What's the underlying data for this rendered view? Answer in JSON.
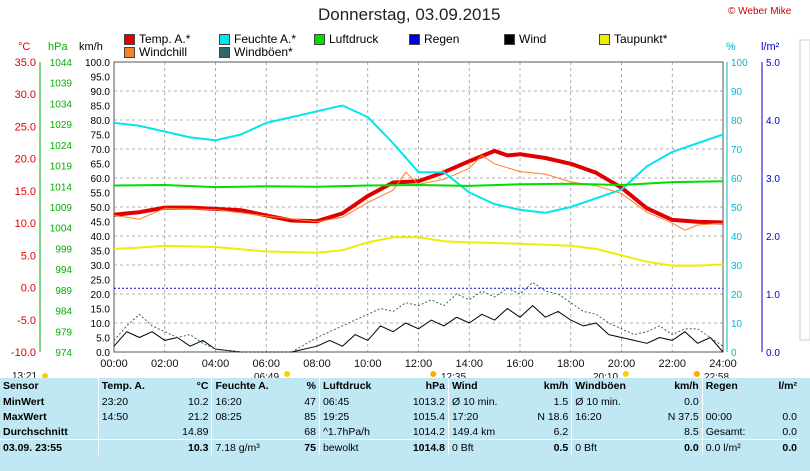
{
  "title": "Donnerstag, 03.09.2015",
  "copyright": "© Weber Mike",
  "legend": [
    {
      "label": "Temp. A.*",
      "color": "#e00000"
    },
    {
      "label": "Feuchte A.*",
      "color": "#00e5ee"
    },
    {
      "label": "Luftdruck",
      "color": "#00dd00"
    },
    {
      "label": "Regen",
      "color": "#0000dd"
    },
    {
      "label": "Wind",
      "color": "#000000"
    },
    {
      "label": "Taupunkt*",
      "color": "#eeee00"
    },
    {
      "label": "Windchill",
      "color": "#ff7f27"
    },
    {
      "label": "Windböen*",
      "color": "#336666"
    }
  ],
  "units": {
    "temp": "°C",
    "pressure": "hPa",
    "wind": "km/h",
    "humidity": "%",
    "rain": "l/m²"
  },
  "bottom_times": {
    "sunrise": "06:49",
    "sunset": "20:10",
    "moonset": "13:21",
    "t1": "12:35",
    "t2": "22:58"
  },
  "chart_data": {
    "type": "line",
    "x_ticks": [
      "00:00",
      "02:00",
      "04:00",
      "06:00",
      "08:00",
      "10:00",
      "12:00",
      "14:00",
      "16:00",
      "18:00",
      "20:00",
      "22:00",
      "24:00"
    ],
    "axes": {
      "temp_c": {
        "range": [
          -10,
          35
        ],
        "ticks": [
          "-10.0",
          "-5.0",
          "0.0",
          "5.0",
          "10.0",
          "15.0",
          "20.0",
          "25.0",
          "30.0",
          "35.0"
        ],
        "color": "#e00000"
      },
      "pressure_hpa": {
        "range": [
          974,
          1044
        ],
        "ticks": [
          "974",
          "979",
          "984",
          "989",
          "994",
          "999",
          "1004",
          "1009",
          "1014",
          "1019",
          "1024",
          "1029",
          "1034",
          "1039",
          "1044"
        ],
        "color": "#00b000"
      },
      "wind_kmh": {
        "range": [
          0,
          100
        ],
        "ticks": [
          "0.0",
          "5.0",
          "10.0",
          "15.0",
          "20.0",
          "25.0",
          "30.0",
          "35.0",
          "40.0",
          "45.0",
          "50.0",
          "55.0",
          "60.0",
          "65.0",
          "70.0",
          "75.0",
          "80.0",
          "85.0",
          "90.0",
          "95.0",
          "100.0"
        ],
        "color": "#000000"
      },
      "humidity_pct": {
        "range": [
          0,
          100
        ],
        "ticks": [
          "0",
          "10",
          "20",
          "30",
          "40",
          "50",
          "60",
          "70",
          "80",
          "90",
          "100"
        ],
        "color": "#00c8d8"
      },
      "rain_lm2": {
        "range": [
          0,
          5
        ],
        "ticks": [
          "0.0",
          "1.0",
          "2.0",
          "3.0",
          "4.0",
          "5.0"
        ],
        "color": "#0000cc"
      }
    },
    "series": [
      {
        "name": "Temp. A.*",
        "axis": "temp_c",
        "color": "#e00000",
        "width": 4,
        "points": [
          [
            0,
            11.3
          ],
          [
            1,
            11.7
          ],
          [
            2,
            12.4
          ],
          [
            3,
            12.4
          ],
          [
            4,
            12.2
          ],
          [
            5,
            12.0
          ],
          [
            6,
            11.2
          ],
          [
            7,
            10.4
          ],
          [
            8,
            10.3
          ],
          [
            9,
            11.5
          ],
          [
            10,
            14.2
          ],
          [
            11,
            16.3
          ],
          [
            12,
            16.5
          ],
          [
            13,
            17.9
          ],
          [
            14,
            19.6
          ],
          [
            15,
            21.2
          ],
          [
            15.5,
            20.5
          ],
          [
            16,
            20.7
          ],
          [
            17,
            20.1
          ],
          [
            18,
            19.2
          ],
          [
            19,
            17.8
          ],
          [
            20,
            15.5
          ],
          [
            21,
            12.3
          ],
          [
            22,
            10.5
          ],
          [
            23,
            10.2
          ],
          [
            24,
            10.1
          ]
        ]
      },
      {
        "name": "Windchill",
        "axis": "temp_c",
        "color": "#ff7f27",
        "width": 1,
        "points": [
          [
            0,
            11.2
          ],
          [
            1,
            10.6
          ],
          [
            2,
            12.3
          ],
          [
            4,
            12.1
          ],
          [
            6,
            11.1
          ],
          [
            8,
            10.2
          ],
          [
            9,
            10.9
          ],
          [
            10,
            13.2
          ],
          [
            11,
            15.1
          ],
          [
            11.5,
            17.9
          ],
          [
            12,
            16.0
          ],
          [
            13,
            16.8
          ],
          [
            14,
            18.5
          ],
          [
            14.5,
            20.5
          ],
          [
            15,
            19.2
          ],
          [
            16,
            18.0
          ],
          [
            17,
            17.6
          ],
          [
            18,
            16.4
          ],
          [
            19,
            15.8
          ],
          [
            20,
            14.6
          ],
          [
            21,
            11.7
          ],
          [
            22,
            10.0
          ],
          [
            22.5,
            8.9
          ],
          [
            23,
            9.7
          ],
          [
            24,
            10.0
          ]
        ]
      },
      {
        "name": "Feuchte A.*",
        "axis": "humidity_pct",
        "color": "#00e5ee",
        "width": 2,
        "points": [
          [
            0,
            79
          ],
          [
            1,
            78
          ],
          [
            2,
            76
          ],
          [
            3,
            74
          ],
          [
            4,
            73
          ],
          [
            5,
            75
          ],
          [
            6,
            79
          ],
          [
            7,
            81
          ],
          [
            8,
            83
          ],
          [
            9,
            85
          ],
          [
            10,
            81
          ],
          [
            11,
            72
          ],
          [
            12,
            62
          ],
          [
            13,
            62
          ],
          [
            14,
            55
          ],
          [
            15,
            51
          ],
          [
            16,
            49
          ],
          [
            17,
            48
          ],
          [
            18,
            50
          ],
          [
            19,
            53
          ],
          [
            20,
            56
          ],
          [
            21,
            64
          ],
          [
            22,
            69
          ],
          [
            23,
            72
          ],
          [
            24,
            75
          ]
        ]
      },
      {
        "name": "Luftdruck",
        "axis": "pressure_hpa",
        "color": "#00dd00",
        "width": 2,
        "points": [
          [
            0,
            1014.2
          ],
          [
            2,
            1014.3
          ],
          [
            4,
            1013.8
          ],
          [
            6,
            1014.0
          ],
          [
            8,
            1013.9
          ],
          [
            10,
            1014.2
          ],
          [
            12,
            1014.3
          ],
          [
            14,
            1014.1
          ],
          [
            16,
            1014.5
          ],
          [
            18,
            1014.6
          ],
          [
            20,
            1014.3
          ],
          [
            22,
            1015.0
          ],
          [
            24,
            1015.2
          ]
        ]
      },
      {
        "name": "Taupunkt*",
        "axis": "temp_c",
        "color": "#eeee00",
        "width": 2,
        "points": [
          [
            0,
            6.0
          ],
          [
            1,
            6.2
          ],
          [
            2,
            6.5
          ],
          [
            4,
            6.3
          ],
          [
            6,
            5.6
          ],
          [
            8,
            5.4
          ],
          [
            9,
            5.8
          ],
          [
            10,
            7.0
          ],
          [
            11,
            7.8
          ],
          [
            12,
            7.8
          ],
          [
            13,
            7.2
          ],
          [
            14,
            7.0
          ],
          [
            16,
            6.8
          ],
          [
            18,
            6.5
          ],
          [
            19,
            6.0
          ],
          [
            20,
            5.0
          ],
          [
            21,
            4.0
          ],
          [
            22,
            3.4
          ],
          [
            23,
            3.4
          ],
          [
            24,
            3.6
          ]
        ]
      },
      {
        "name": "Wind",
        "axis": "wind_kmh",
        "color": "#000000",
        "width": 1,
        "points": [
          [
            0,
            2
          ],
          [
            0.5,
            7
          ],
          [
            1,
            5
          ],
          [
            1.5,
            7
          ],
          [
            2,
            4
          ],
          [
            2.5,
            5
          ],
          [
            3,
            2
          ],
          [
            3.5,
            4
          ],
          [
            4,
            1
          ],
          [
            5,
            0
          ],
          [
            7,
            0
          ],
          [
            8,
            2
          ],
          [
            8.5,
            4
          ],
          [
            9,
            2
          ],
          [
            9.5,
            6
          ],
          [
            10,
            4
          ],
          [
            10.5,
            9
          ],
          [
            11,
            7
          ],
          [
            11.5,
            10
          ],
          [
            12,
            8
          ],
          [
            12.5,
            11
          ],
          [
            13,
            9
          ],
          [
            13.5,
            12
          ],
          [
            14,
            10
          ],
          [
            14.5,
            13
          ],
          [
            15,
            11
          ],
          [
            15.5,
            15
          ],
          [
            16,
            12
          ],
          [
            16.5,
            16
          ],
          [
            17,
            12
          ],
          [
            17.5,
            14
          ],
          [
            18,
            11
          ],
          [
            18.5,
            9
          ],
          [
            19,
            10
          ],
          [
            19.5,
            6
          ],
          [
            20,
            5
          ],
          [
            20.5,
            4
          ],
          [
            21,
            3
          ],
          [
            21.5,
            5
          ],
          [
            22,
            4
          ],
          [
            22.5,
            7
          ],
          [
            23,
            3
          ],
          [
            23.5,
            5
          ],
          [
            24,
            0
          ]
        ]
      },
      {
        "name": "Windböen*",
        "axis": "wind_kmh",
        "color": "#336666",
        "width": 1,
        "dashed": true,
        "points": [
          [
            0,
            4
          ],
          [
            0.5,
            9
          ],
          [
            1,
            13
          ],
          [
            1.5,
            9
          ],
          [
            2,
            7
          ],
          [
            2.5,
            5
          ],
          [
            3,
            6
          ],
          [
            3.5,
            3
          ],
          [
            4,
            1
          ],
          [
            5,
            0
          ],
          [
            7,
            0
          ],
          [
            8,
            5
          ],
          [
            8.5,
            7
          ],
          [
            9,
            9
          ],
          [
            9.5,
            11
          ],
          [
            10,
            13
          ],
          [
            10.5,
            15
          ],
          [
            11,
            14
          ],
          [
            11.5,
            17
          ],
          [
            12,
            16
          ],
          [
            12.5,
            18
          ],
          [
            13,
            16
          ],
          [
            13.5,
            20
          ],
          [
            14,
            18
          ],
          [
            14.5,
            21
          ],
          [
            15,
            19
          ],
          [
            15.5,
            22
          ],
          [
            16,
            20
          ],
          [
            16.5,
            24
          ],
          [
            17,
            21
          ],
          [
            17.5,
            20
          ],
          [
            18,
            17
          ],
          [
            18.5,
            14
          ],
          [
            19,
            13
          ],
          [
            19.5,
            10
          ],
          [
            20,
            8
          ],
          [
            20.5,
            6
          ],
          [
            21,
            7
          ],
          [
            21.5,
            9
          ],
          [
            22,
            6
          ],
          [
            22.5,
            8
          ],
          [
            23,
            8
          ],
          [
            23.5,
            5
          ],
          [
            24,
            2
          ]
        ]
      },
      {
        "name": "Regen",
        "axis": "wind_kmh",
        "color": "#0000dd",
        "width": 1,
        "dashed": true,
        "points": [
          [
            0,
            22
          ],
          [
            24,
            22
          ]
        ]
      }
    ]
  },
  "table": {
    "headers": [
      "Sensor",
      "Temp. A.",
      "°C",
      "Feuchte A.",
      "%",
      "Luftdruck",
      "hPa",
      "Wind",
      "km/h",
      "Windböen",
      "km/h",
      "Regen",
      "l/m²"
    ],
    "rows": [
      {
        "label": "MinWert",
        "cells": [
          "23:20",
          "10.2",
          "16:20",
          "47",
          "06:45",
          "1013.2",
          "Ø 10 min.",
          "1.5",
          "Ø 10 min.",
          "0.0",
          "",
          ""
        ]
      },
      {
        "label": "MaxWert",
        "cells": [
          "14:50",
          "21.2",
          "08:25",
          "85",
          "19:25",
          "1015.4",
          "17:20",
          "N 18.6",
          "16:20",
          "N 37.5",
          "00:00",
          "0.0"
        ]
      },
      {
        "label": "Durchschnitt",
        "cells": [
          "",
          "14.89",
          "",
          "68",
          "^1.7hPa/h",
          "1014.2",
          "149.4 km",
          "6.2",
          "",
          "8.5",
          "Gesamt:",
          "0.0"
        ]
      },
      {
        "label": "03.09. 23:55",
        "cells": [
          "",
          "10.3",
          "7.18 g/m³",
          "75",
          "bewolkt",
          "1014.8",
          "0 Bft",
          "0.5",
          "0 Bft",
          "0.0",
          "0.0 l/m²",
          "0.0"
        ]
      }
    ]
  }
}
